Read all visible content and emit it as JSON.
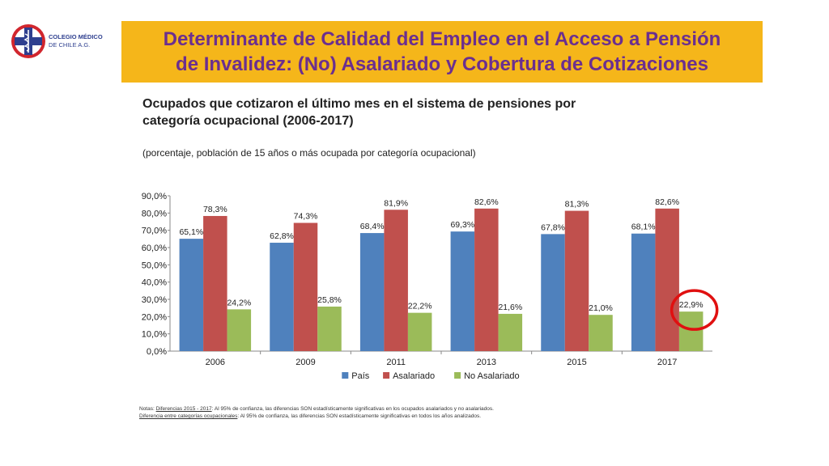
{
  "logo": {
    "name_line1": "COLEGIO MÉDICO",
    "name_line2": "DE CHILE A.G.",
    "colors": {
      "red": "#d1262e",
      "blue": "#2e3f8f"
    }
  },
  "banner": {
    "title_line1": "Determinante de Calidad del Empleo en el Acceso a Pensión",
    "title_line2": "de Invalidez: (No) Asalariado y Cobertura de Cotizaciones",
    "bg_color": "#f5b61a",
    "text_color": "#6b2f8f"
  },
  "chart_data": {
    "type": "bar",
    "title_line1": "Ocupados que cotizaron el último mes en el sistema de pensiones por",
    "title_line2": "categoría ocupacional (2006-2017)",
    "subtitle": "(porcentaje, población de 15 años o más ocupada por categoría ocupacional)",
    "categories": [
      "2006",
      "2009",
      "2011",
      "2013",
      "2015",
      "2017"
    ],
    "series": [
      {
        "name": "País",
        "color": "#4f81bd",
        "values": [
          65.1,
          62.8,
          68.4,
          69.3,
          67.8,
          68.1
        ],
        "labels": [
          "65,1%",
          "62,8%",
          "68,4%",
          "69,3%",
          "67,8%",
          "68,1%"
        ]
      },
      {
        "name": "Asalariado",
        "color": "#c0504d",
        "values": [
          78.3,
          74.3,
          81.9,
          82.6,
          81.3,
          82.6
        ],
        "labels": [
          "78,3%",
          "74,3%",
          "81,9%",
          "82,6%",
          "81,3%",
          "82,6%"
        ]
      },
      {
        "name": "No Asalariado",
        "color": "#9bbb59",
        "values": [
          24.2,
          25.8,
          22.2,
          21.6,
          21.0,
          22.9
        ],
        "labels": [
          "24,2%",
          "25,8%",
          "22,2%",
          "21,6%",
          "21,0%",
          "22,9%"
        ]
      }
    ],
    "ylim": [
      0,
      90
    ],
    "yticks": [
      {
        "value": 90,
        "label": "90,0%"
      },
      {
        "value": 80,
        "label": "80,0%"
      },
      {
        "value": 70,
        "label": "70,0%"
      },
      {
        "value": 60,
        "label": "60,0%"
      },
      {
        "value": 50,
        "label": "50,0%"
      },
      {
        "value": 40,
        "label": "40,0%"
      },
      {
        "value": 30,
        "label": "30,0%"
      },
      {
        "value": 20,
        "label": "20,0%"
      },
      {
        "value": 10,
        "label": "10,0%"
      },
      {
        "value": 0,
        "label": "0,0%"
      }
    ],
    "grid": false,
    "legend_position": "bottom",
    "highlight": {
      "category": "2017",
      "series": "No Asalariado",
      "shape": "circle",
      "color": "#e01010"
    }
  },
  "notes": {
    "line1_prefix": "Notas: ",
    "line1_link": "Diferencias 2015 - 2017",
    "line1_rest": ": Al 95% de confianza, las diferencias SON estadísticamente significativas en los ocupados asalariados y no asalariados.",
    "line2_link": "Diferencia entre categorías ocupacionales",
    "line2_rest": ": Al 95% de confianza, las diferencias SON estadísticamente significativas en todos los años analizados."
  }
}
